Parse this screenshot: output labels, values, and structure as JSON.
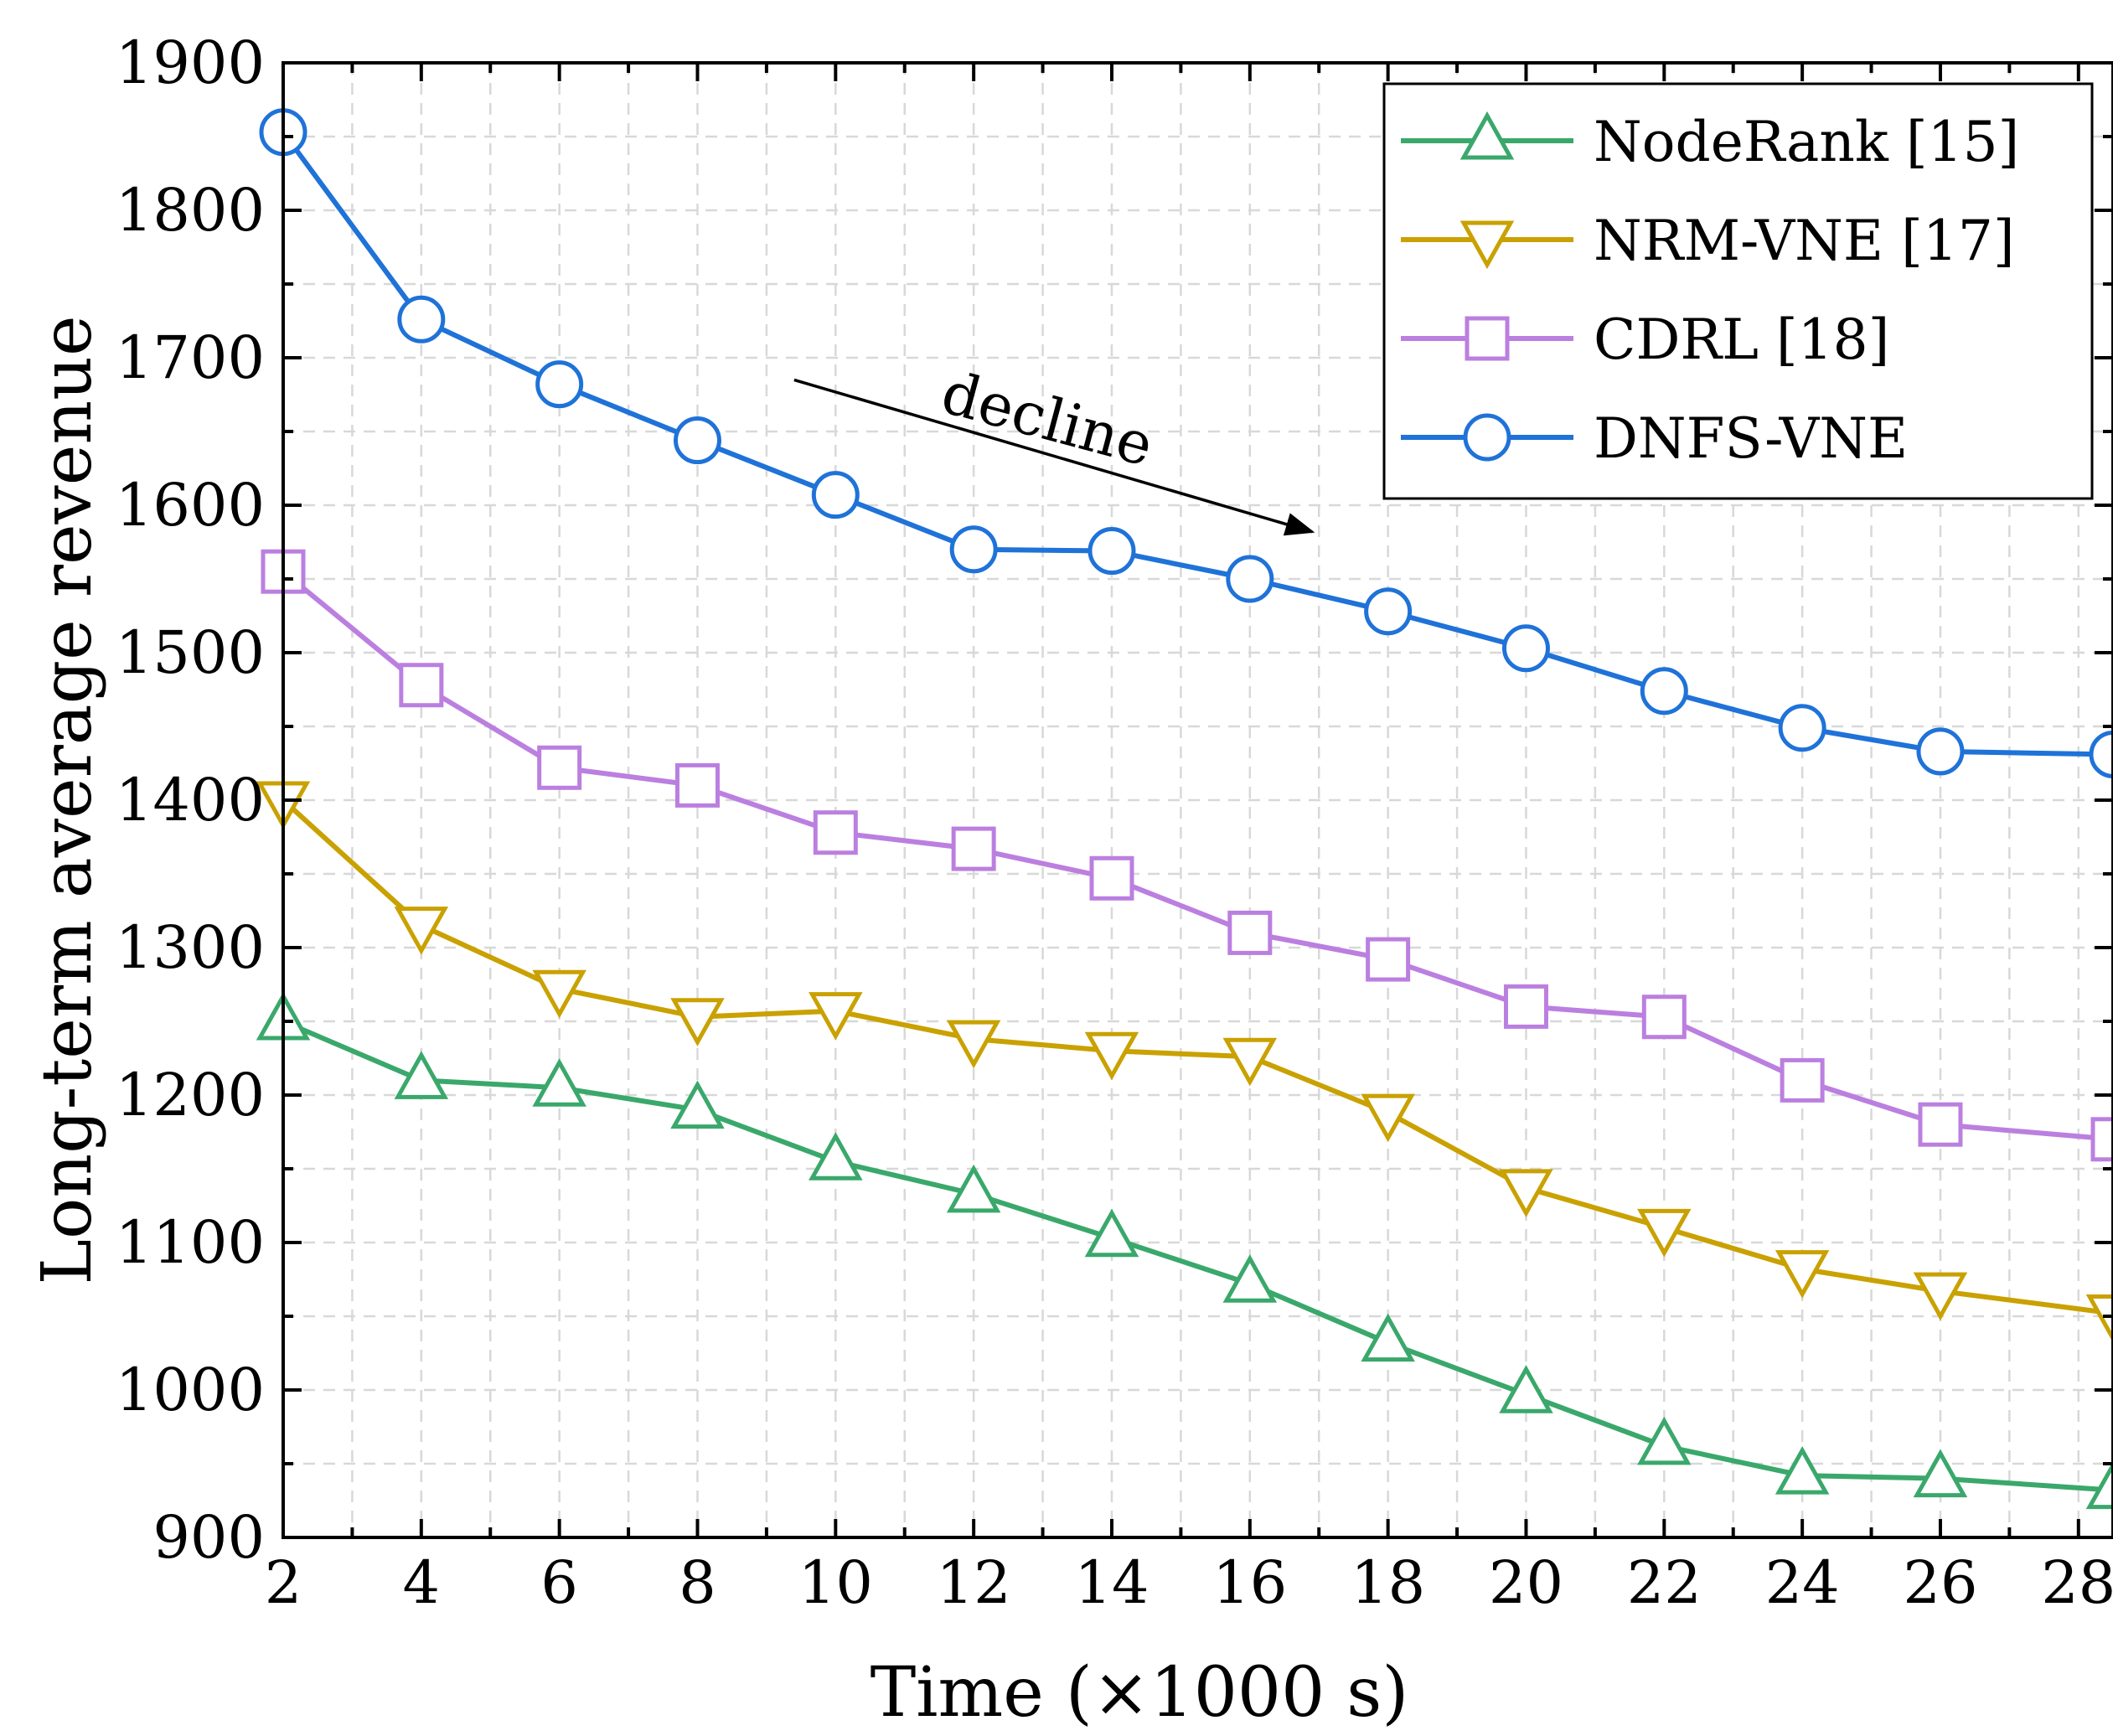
{
  "chart_data": {
    "type": "line",
    "title": "",
    "xlabel": "Time (×1000 s)",
    "ylabel": "Long-term average revenue",
    "xlim": [
      2,
      28.5
    ],
    "ylim": [
      900,
      1900
    ],
    "xticks": [
      2,
      4,
      6,
      8,
      10,
      12,
      14,
      16,
      18,
      20,
      22,
      24,
      26,
      28
    ],
    "yticks": [
      900,
      1000,
      1100,
      1200,
      1300,
      1400,
      1500,
      1600,
      1700,
      1800,
      1900
    ],
    "grid": true,
    "legend_position": "top-right",
    "x": [
      2,
      4,
      6,
      8,
      10,
      12,
      14,
      16,
      18,
      20,
      22,
      24,
      26,
      28.5
    ],
    "series": [
      {
        "name": "NodeRank [15]",
        "color": "#3aa86b",
        "marker": "triangle-up",
        "values": [
          1250,
          1210,
          1205,
          1190,
          1155,
          1133,
          1103,
          1072,
          1032,
          997,
          962,
          942,
          940,
          932
        ]
      },
      {
        "name": "NRM-VNE [17]",
        "color": "#c9a100",
        "marker": "triangle-down",
        "values": [
          1400,
          1315,
          1272,
          1253,
          1257,
          1238,
          1230,
          1226,
          1188,
          1137,
          1110,
          1082,
          1067,
          1052
        ]
      },
      {
        "name": "CDRL [18]",
        "color": "#bb7fe0",
        "marker": "square",
        "values": [
          1555,
          1478,
          1422,
          1410,
          1378,
          1367,
          1347,
          1310,
          1292,
          1260,
          1253,
          1210,
          1180,
          1170
        ]
      },
      {
        "name": "DNFS-VNE",
        "color": "#1f72d8",
        "marker": "circle",
        "values": [
          1853,
          1726,
          1682,
          1644,
          1607,
          1570,
          1569,
          1550,
          1528,
          1503,
          1474,
          1449,
          1433,
          1431
        ]
      }
    ],
    "annotations": [
      {
        "text": "decline",
        "arrow_from": [
          9.4,
          1685
        ],
        "arrow_to": [
          16.9,
          1582
        ]
      }
    ]
  }
}
